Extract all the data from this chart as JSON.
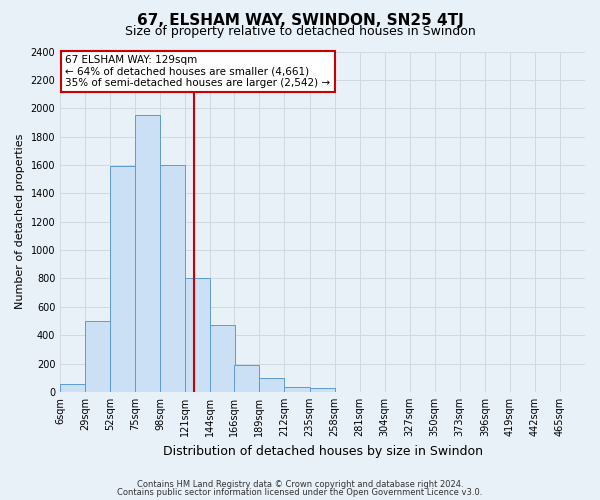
{
  "title": "67, ELSHAM WAY, SWINDON, SN25 4TJ",
  "subtitle": "Size of property relative to detached houses in Swindon",
  "xlabel": "Distribution of detached houses by size in Swindon",
  "ylabel": "Number of detached properties",
  "footer_line1": "Contains HM Land Registry data © Crown copyright and database right 2024.",
  "footer_line2": "Contains public sector information licensed under the Open Government Licence v3.0.",
  "bin_labels": [
    "6sqm",
    "29sqm",
    "52sqm",
    "75sqm",
    "98sqm",
    "121sqm",
    "144sqm",
    "166sqm",
    "189sqm",
    "212sqm",
    "235sqm",
    "258sqm",
    "281sqm",
    "304sqm",
    "327sqm",
    "350sqm",
    "373sqm",
    "396sqm",
    "419sqm",
    "442sqm",
    "465sqm"
  ],
  "bin_edges": [
    6,
    29,
    52,
    75,
    98,
    121,
    144,
    166,
    189,
    212,
    235,
    258,
    281,
    304,
    327,
    350,
    373,
    396,
    419,
    442,
    465
  ],
  "bar_heights": [
    55,
    500,
    1590,
    1950,
    1600,
    800,
    470,
    190,
    95,
    35,
    25,
    0,
    0,
    0,
    0,
    0,
    0,
    0,
    0,
    0
  ],
  "bar_facecolor": "#cce0f5",
  "bar_edgecolor": "#5b9bd5",
  "vline_x": 129,
  "vline_color": "#cc0000",
  "annotation_line1": "67 ELSHAM WAY: 129sqm",
  "annotation_line2": "← 64% of detached houses are smaller (4,661)",
  "annotation_line3": "35% of semi-detached houses are larger (2,542) →",
  "annotation_bbox_facecolor": "#ffffff",
  "annotation_bbox_edgecolor": "#cc0000",
  "ylim": [
    0,
    2400
  ],
  "yticks": [
    0,
    200,
    400,
    600,
    800,
    1000,
    1200,
    1400,
    1600,
    1800,
    2000,
    2200,
    2400
  ],
  "background_color": "#e8f0f8",
  "grid_color": "#d0d8e0",
  "title_fontsize": 11,
  "subtitle_fontsize": 9,
  "ylabel_fontsize": 8,
  "xlabel_fontsize": 9,
  "tick_fontsize": 7,
  "annotation_fontsize": 7.5,
  "footer_fontsize": 6
}
